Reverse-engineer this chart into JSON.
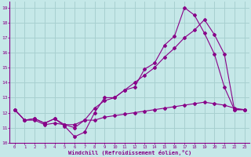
{
  "xlabel": "Windchill (Refroidissement éolien,°C)",
  "xlim": [
    -0.5,
    23.5
  ],
  "ylim": [
    10,
    19.4
  ],
  "xticks": [
    0,
    1,
    2,
    3,
    4,
    5,
    6,
    7,
    8,
    9,
    10,
    11,
    12,
    13,
    14,
    15,
    16,
    17,
    18,
    19,
    20,
    21,
    22,
    23
  ],
  "yticks": [
    10,
    11,
    12,
    13,
    14,
    15,
    16,
    17,
    18,
    19
  ],
  "bg_color": "#c5e8e8",
  "grid_color": "#a8d0d0",
  "line_color": "#880088",
  "series1_x": [
    0,
    1,
    2,
    3,
    4,
    5,
    6,
    7,
    8,
    9,
    10,
    11,
    12,
    13,
    14,
    15,
    16,
    17,
    18,
    19,
    20,
    21,
    22,
    23
  ],
  "series1_y": [
    12.2,
    11.5,
    11.6,
    11.3,
    11.6,
    11.1,
    10.4,
    10.7,
    12.0,
    13.0,
    13.0,
    13.5,
    13.7,
    14.9,
    15.3,
    16.5,
    17.1,
    19.0,
    18.5,
    17.3,
    15.9,
    13.7,
    12.2,
    12.2
  ],
  "series2_x": [
    0,
    1,
    2,
    3,
    4,
    5,
    6,
    7,
    8,
    9,
    10,
    11,
    12,
    13,
    14,
    15,
    16,
    17,
    18,
    19,
    20,
    21,
    22,
    23
  ],
  "series2_y": [
    12.2,
    11.5,
    11.6,
    11.3,
    11.6,
    11.2,
    11.0,
    11.5,
    12.3,
    12.8,
    13.0,
    13.5,
    14.0,
    14.5,
    15.0,
    15.7,
    16.3,
    17.0,
    17.5,
    18.2,
    17.2,
    15.9,
    12.2,
    12.2
  ],
  "series3_x": [
    0,
    1,
    2,
    3,
    4,
    5,
    6,
    7,
    8,
    9,
    10,
    11,
    12,
    13,
    14,
    15,
    16,
    17,
    18,
    19,
    20,
    21,
    22,
    23
  ],
  "series3_y": [
    12.2,
    11.5,
    11.5,
    11.2,
    11.3,
    11.2,
    11.2,
    11.5,
    11.5,
    11.7,
    11.8,
    11.9,
    12.0,
    12.1,
    12.2,
    12.3,
    12.4,
    12.5,
    12.6,
    12.7,
    12.6,
    12.5,
    12.3,
    12.2
  ],
  "marker": "D",
  "markersize": 2.0,
  "linewidth": 0.8
}
